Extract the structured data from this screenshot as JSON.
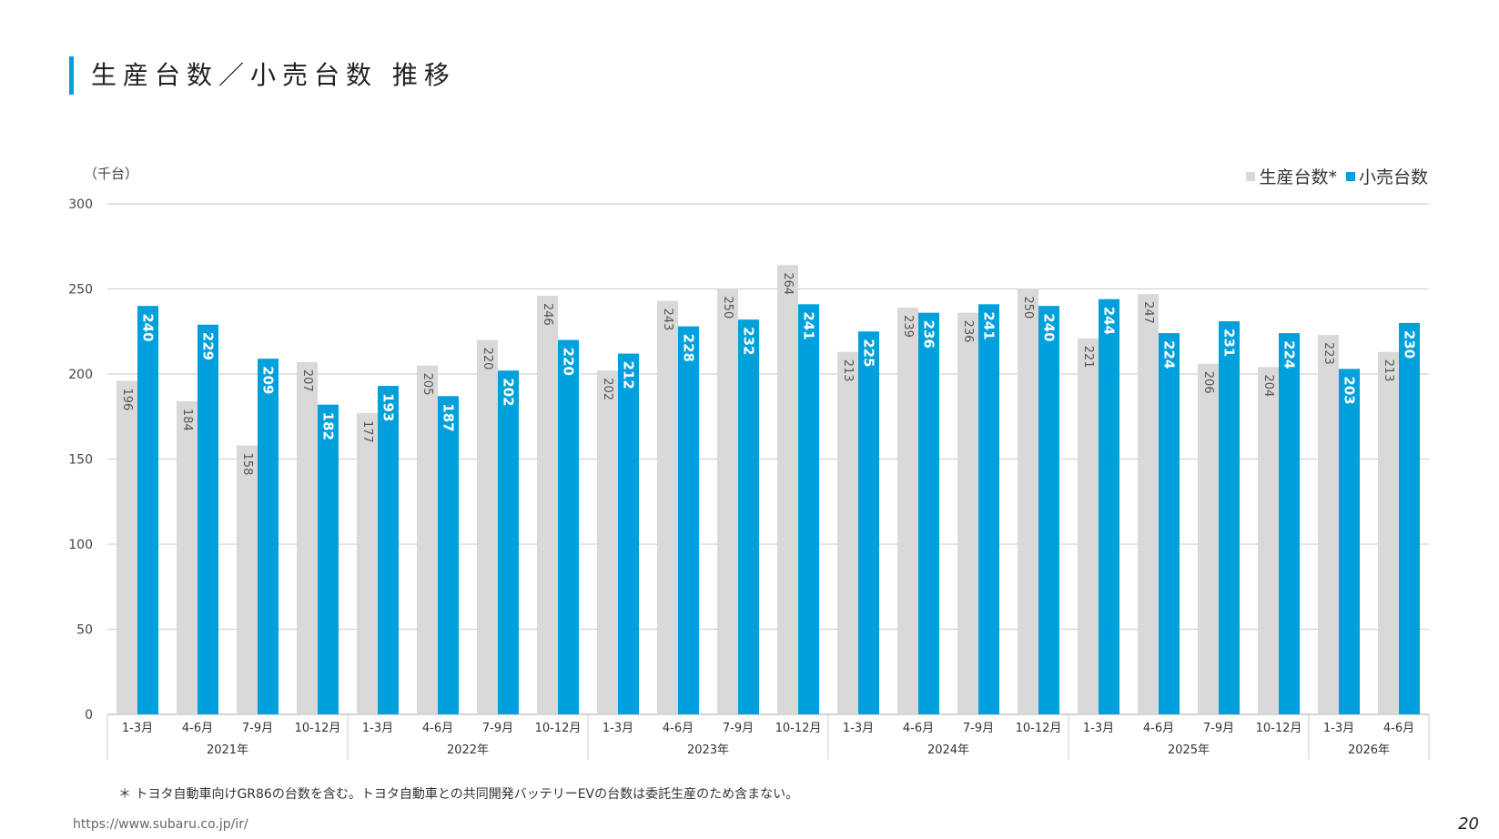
{
  "header": {
    "title": "生産台数／小売台数 推移"
  },
  "chart_data": {
    "type": "bar",
    "unit_label": "（千台）",
    "ylim": [
      0,
      300
    ],
    "yticks": [
      0,
      50,
      100,
      150,
      200,
      250,
      300
    ],
    "grid": true,
    "legend_position": "top-right",
    "categories": [
      "1-3月",
      "4-6月",
      "7-9月",
      "10-12月",
      "1-3月",
      "4-6月",
      "7-9月",
      "10-12月",
      "1-3月",
      "4-6月",
      "7-9月",
      "10-12月",
      "1-3月",
      "4-6月",
      "7-9月",
      "10-12月",
      "1-3月",
      "4-6月",
      "7-9月",
      "10-12月",
      "1-3月",
      "4-6月"
    ],
    "years": [
      {
        "label": "2021年",
        "count": 4
      },
      {
        "label": "2022年",
        "count": 4
      },
      {
        "label": "2023年",
        "count": 4
      },
      {
        "label": "2024年",
        "count": 4
      },
      {
        "label": "2025年",
        "count": 4
      },
      {
        "label": "2026年",
        "count": 2
      }
    ],
    "series": [
      {
        "name": "生産台数*",
        "color": "#d9d9d9",
        "label_color": "#555555",
        "values": [
          196,
          184,
          158,
          207,
          177,
          205,
          220,
          246,
          202,
          243,
          250,
          264,
          213,
          239,
          236,
          250,
          221,
          247,
          206,
          204,
          223,
          213
        ]
      },
      {
        "name": "小売台数",
        "color": "#00a0dc",
        "label_color": "#ffffff",
        "values": [
          240,
          229,
          209,
          182,
          193,
          187,
          202,
          220,
          212,
          228,
          232,
          241,
          225,
          236,
          241,
          240,
          244,
          224,
          231,
          224,
          203,
          230
        ]
      }
    ]
  },
  "footer": {
    "note": "＊ トヨタ自動車向けGR86の台数を含む。トヨタ自動車との共同開発バッテリーEVの台数は委託生産のため含まない。",
    "url": "https://www.subaru.co.jp/ir/",
    "page_number": "20"
  }
}
